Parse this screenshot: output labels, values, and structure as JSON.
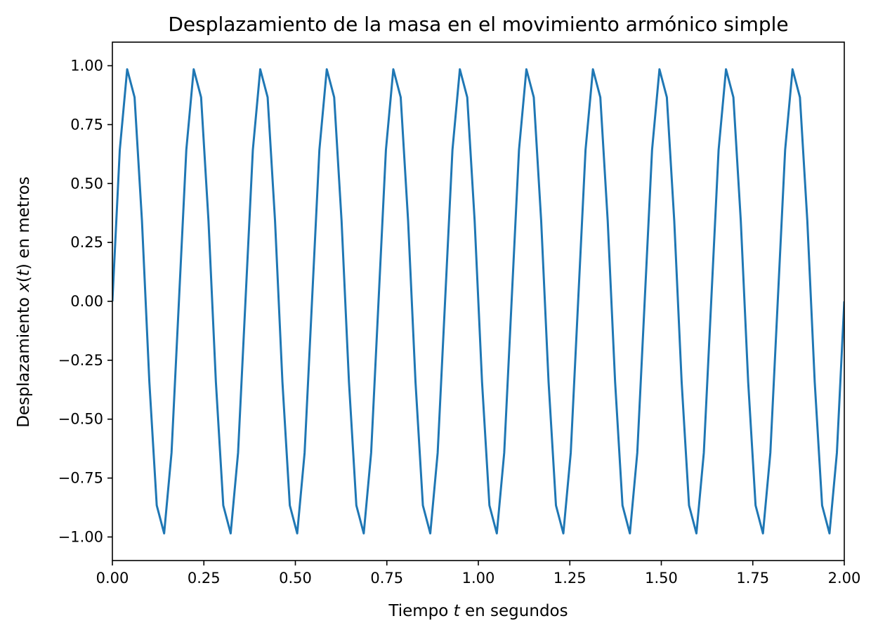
{
  "chart_data": {
    "type": "line",
    "title": "Desplazamiento de la masa en el movimiento armónico simple",
    "xlabel": {
      "pre": "Tiempo ",
      "var": "t",
      "post": " en segundos"
    },
    "ylabel": {
      "pre": "Desplazamiento ",
      "var": "x",
      "paren_open": "(",
      "var2": "t",
      "paren_close": ")",
      "post": " en metros"
    },
    "xlim": [
      0,
      2
    ],
    "ylim": [
      -1.1,
      1.1
    ],
    "xticks": [
      0,
      0.25,
      0.5,
      0.75,
      1.0,
      1.25,
      1.5,
      1.75,
      2.0
    ],
    "xtick_labels": [
      "0.00",
      "0.25",
      "0.50",
      "0.75",
      "1.00",
      "1.25",
      "1.50",
      "1.75",
      "2.00"
    ],
    "yticks": [
      1.0,
      0.75,
      0.5,
      0.25,
      0.0,
      -0.25,
      -0.5,
      -0.75,
      -1.0
    ],
    "ytick_labels": [
      "1.00",
      "0.75",
      "0.50",
      "0.25",
      "0.00",
      "−0.25",
      "−0.50",
      "−0.75",
      "−1.00"
    ],
    "grid": false,
    "series": [
      {
        "color": "#1f77b4",
        "x_start": 0,
        "x_end": 2,
        "num_points": 100,
        "amplitude": 1.0,
        "frequency_hz": 5.5
      }
    ]
  }
}
